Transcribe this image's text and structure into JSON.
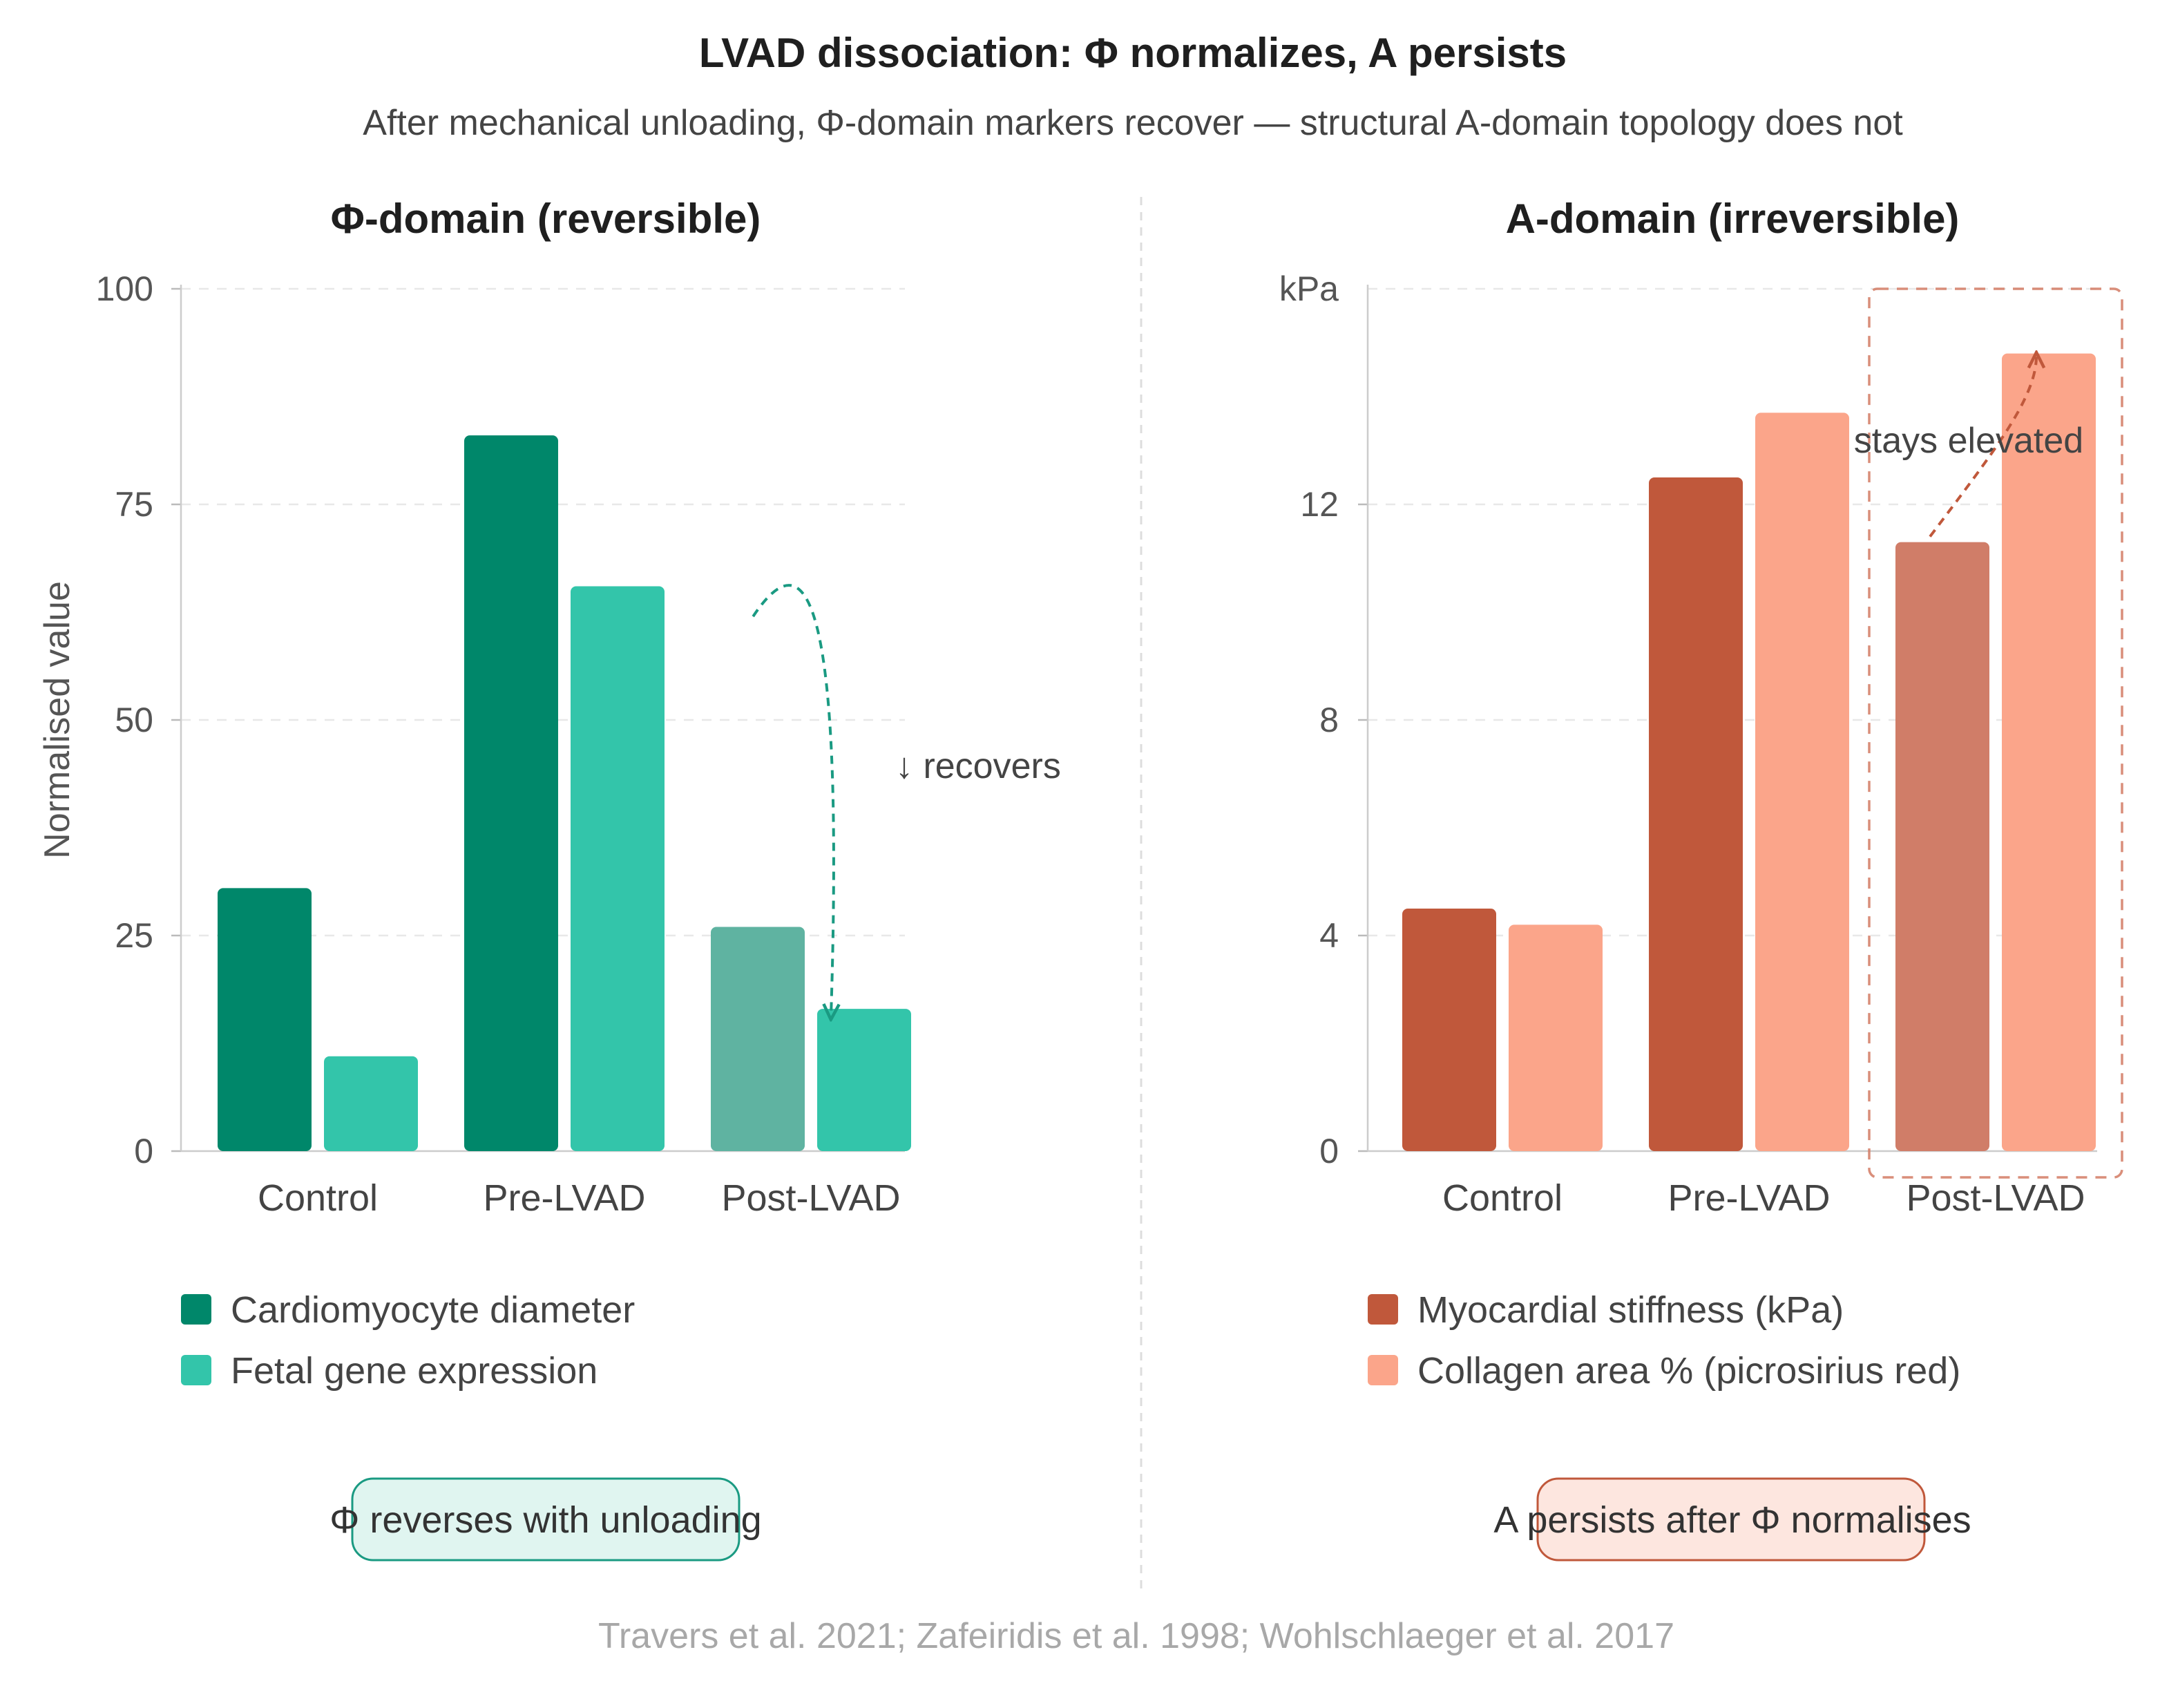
{
  "title": "LVAD dissociation: Φ normalizes, A persists",
  "subtitle": "After mechanical unloading, Φ-domain markers recover — structural A-domain topology does not",
  "source": "Travers et al. 2021; Zafeiridis et al. 1998; Wohlschlaeger et al. 2017",
  "chart_data": [
    {
      "type": "bar",
      "title": "Φ-domain (reversible)",
      "categories": [
        "Control",
        "Pre-LVAD",
        "Post-LVAD"
      ],
      "ylabel": "Normalised value",
      "yunit": "",
      "ylim": [
        0,
        100
      ],
      "yticks": [
        "0",
        "25",
        "50",
        "75",
        "100"
      ],
      "grid": true,
      "legend_position": "bottom-left",
      "series": [
        {
          "name": "Cardiomyocyte diameter",
          "values": [
            30.5,
            83,
            26
          ],
          "color": "#00876a",
          "post_color": "#5fb3a1"
        },
        {
          "name": "Fetal gene expression",
          "values": [
            11,
            65.5,
            16.5
          ],
          "color": "#33c5aa",
          "post_color": "#33c5aa"
        }
      ],
      "annotation": "↓ recovers",
      "callout": "Φ reverses with unloading",
      "accent": "#1a9a82",
      "callout_fill": "#e0f5f0"
    },
    {
      "type": "bar",
      "title": "A-domain (irreversible)",
      "categories": [
        "Control",
        "Pre-LVAD",
        "Post-LVAD"
      ],
      "ylabel": "",
      "yunit": "kPa",
      "ylim": [
        0,
        16
      ],
      "yticks": [
        "0",
        "4",
        "8",
        "12"
      ],
      "grid": true,
      "legend_position": "bottom-left",
      "series": [
        {
          "name": "Myocardial stiffness (kPa)",
          "values": [
            4.5,
            12.5,
            11.3
          ],
          "color": "#c0583b",
          "post_color": "#d07d68"
        },
        {
          "name": "Collagen area % (picrosirius red)",
          "values": [
            4.2,
            13.7,
            14.8
          ],
          "color": "#fba58a",
          "post_color": "#fba58a"
        }
      ],
      "annotation": "stays elevated",
      "callout": "A persists after Φ normalises",
      "accent": "#d27a63",
      "callout_fill": "#fde6df"
    }
  ]
}
